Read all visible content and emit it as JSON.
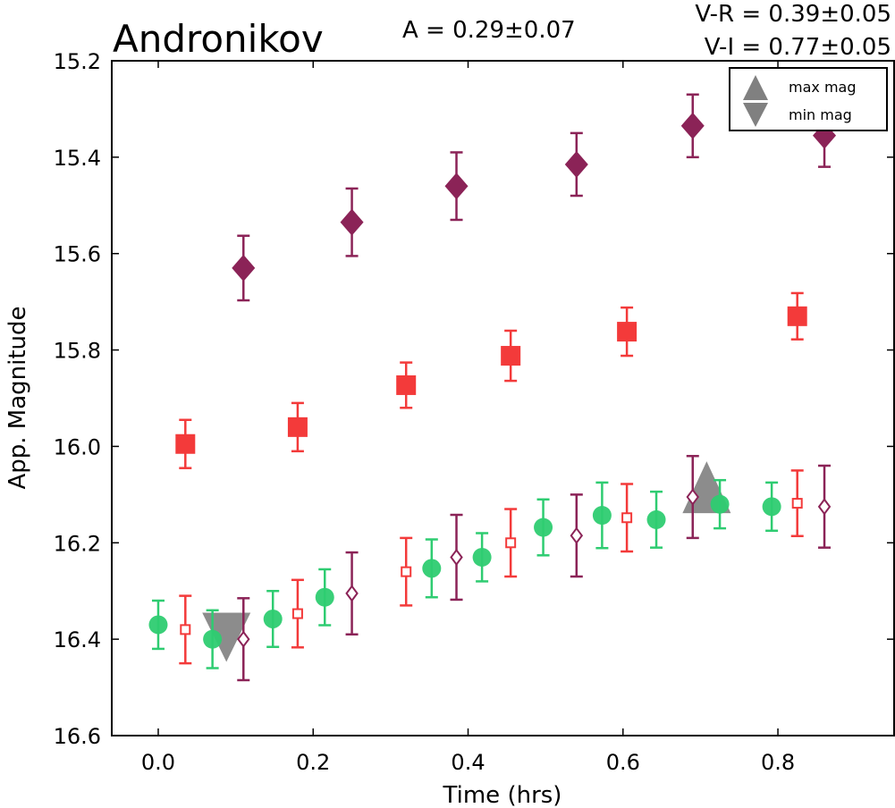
{
  "chart_data": {
    "type": "scatter",
    "title": "Andronikov",
    "annotations": {
      "amplitude": "A  = 0.29±0.07",
      "v_r": "V-R = 0.39±0.05",
      "v_i": "V-I  = 0.77±0.05"
    },
    "xlabel": "Time (hrs)",
    "ylabel": "App. Magnitude",
    "xlim": [
      -0.06,
      0.95
    ],
    "ylim": [
      16.6,
      15.2
    ],
    "y_inverted": true,
    "grid": false,
    "xticks": [
      "0.0",
      "0.2",
      "0.4",
      "0.6",
      "0.8"
    ],
    "xtick_values": [
      0.0,
      0.2,
      0.4,
      0.6,
      0.8
    ],
    "yticks": [
      "15.2",
      "15.4",
      "15.6",
      "15.8",
      "16.0",
      "16.2",
      "16.4",
      "16.6"
    ],
    "ytick_values": [
      15.2,
      15.4,
      15.6,
      15.8,
      16.0,
      16.2,
      16.4,
      16.6
    ],
    "legend": {
      "position": "top-right",
      "entries": [
        {
          "label": "max mag",
          "marker": "triangle-up",
          "color": "#808080"
        },
        {
          "label": "min mag",
          "marker": "triangle-down",
          "color": "#808080"
        }
      ]
    },
    "series": [
      {
        "marker": "diamond-filled",
        "color": "#8B2357",
        "x": [
          0.11,
          0.25,
          0.385,
          0.54,
          0.69,
          0.86
        ],
        "y": [
          15.63,
          15.535,
          15.46,
          15.415,
          15.335,
          15.355
        ],
        "err": [
          0.067,
          0.07,
          0.07,
          0.065,
          0.065,
          0.065
        ]
      },
      {
        "marker": "square-filled",
        "color": "#F33A3A",
        "x": [
          0.035,
          0.18,
          0.32,
          0.455,
          0.605,
          0.825
        ],
        "y": [
          15.995,
          15.96,
          15.873,
          15.812,
          15.762,
          15.73
        ],
        "err": [
          0.05,
          0.05,
          0.047,
          0.052,
          0.05,
          0.048
        ]
      },
      {
        "marker": "circle-filled",
        "color": "#2ECC71",
        "x": [
          0.0,
          0.07,
          0.148,
          0.215,
          0.353,
          0.418,
          0.497,
          0.573,
          0.643,
          0.725,
          0.792
        ],
        "y": [
          16.37,
          16.4,
          16.358,
          16.313,
          16.253,
          16.23,
          16.168,
          16.143,
          16.152,
          16.12,
          16.125
        ],
        "err": [
          0.05,
          0.06,
          0.058,
          0.058,
          0.06,
          0.05,
          0.058,
          0.068,
          0.058,
          0.05,
          0.05
        ]
      },
      {
        "marker": "square-open",
        "color": "#F33A3A",
        "x": [
          0.035,
          0.18,
          0.32,
          0.455,
          0.605,
          0.825
        ],
        "y": [
          16.38,
          16.347,
          16.26,
          16.2,
          16.148,
          16.118
        ],
        "err": [
          0.07,
          0.07,
          0.07,
          0.07,
          0.07,
          0.068
        ]
      },
      {
        "marker": "diamond-open",
        "color": "#8B2357",
        "x": [
          0.11,
          0.25,
          0.385,
          0.54,
          0.69,
          0.86
        ],
        "y": [
          16.4,
          16.305,
          16.23,
          16.185,
          16.105,
          16.125
        ],
        "err": [
          0.085,
          0.085,
          0.088,
          0.085,
          0.085,
          0.085
        ]
      }
    ],
    "extrema": [
      {
        "kind": "max",
        "marker": "triangle-up",
        "color": "#808080",
        "x": 0.708,
        "y": 16.12
      },
      {
        "kind": "min",
        "marker": "triangle-down",
        "color": "#808080",
        "x": 0.088,
        "y": 16.395
      }
    ]
  }
}
